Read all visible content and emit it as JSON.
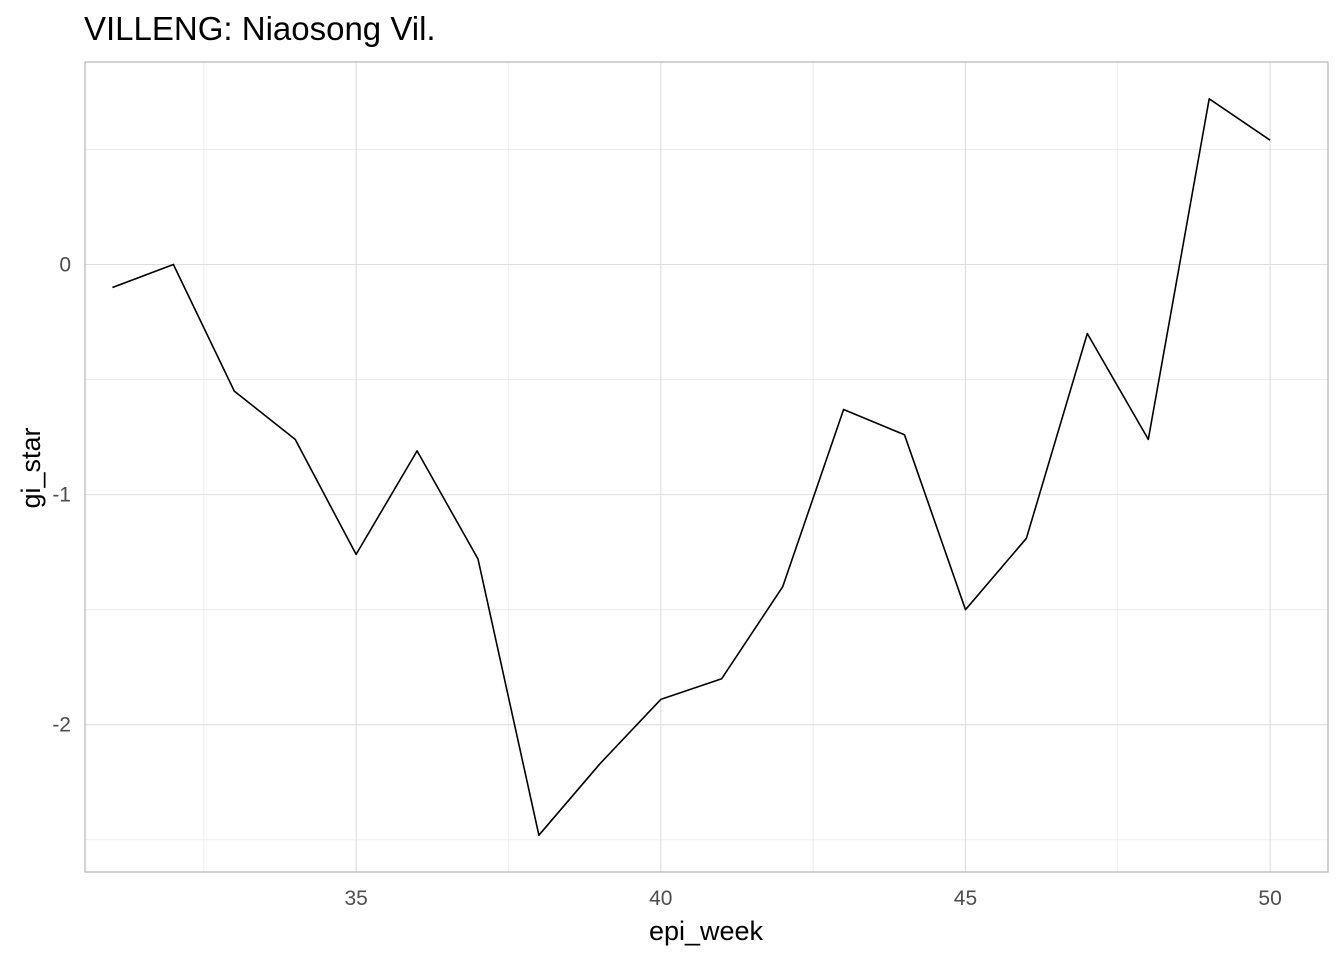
{
  "chart_data": {
    "type": "line",
    "title": "VILLENG: Niaosong Vil.",
    "xlabel": "epi_week",
    "ylabel": "gi_star",
    "x": [
      31,
      32,
      33,
      34,
      35,
      36,
      37,
      38,
      39,
      40,
      41,
      42,
      43,
      44,
      45,
      46,
      47,
      48,
      49,
      50
    ],
    "series": [
      {
        "values": [
          -0.1,
          0.0,
          -0.55,
          -0.76,
          -1.26,
          -0.81,
          -1.28,
          -2.48,
          -2.17,
          -1.89,
          -1.8,
          -1.4,
          -0.63,
          -0.74,
          -1.5,
          -1.19,
          -0.3,
          -0.76,
          0.72,
          0.54
        ]
      }
    ],
    "xlim": [
      30.55,
      50.95
    ],
    "ylim": [
      -2.64,
      0.88
    ],
    "x_ticks": [
      35,
      40,
      45,
      50
    ],
    "x_tick_labels": [
      "35",
      "40",
      "45",
      "50"
    ],
    "y_ticks": [
      0,
      -1,
      -2
    ],
    "y_tick_labels": [
      "0",
      "-1",
      "-2"
    ],
    "grid": true,
    "line_color": "#000000"
  }
}
